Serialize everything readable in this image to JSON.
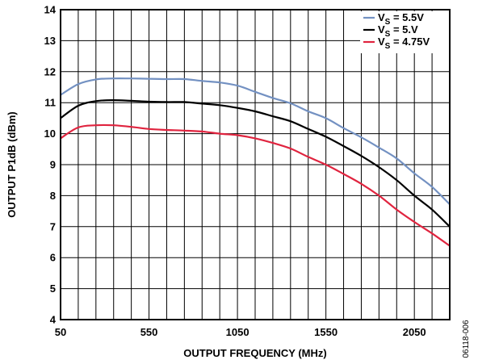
{
  "chart_data": {
    "type": "line",
    "title": "",
    "xlabel": "OUTPUT FREQUENCY (MHz)",
    "ylabel": "OUTPUT P1dB (dBm)",
    "xlim": [
      50,
      2250
    ],
    "ylim": [
      4,
      14
    ],
    "x_ticks": [
      50,
      550,
      1050,
      1550,
      2050
    ],
    "y_ticks": [
      4,
      5,
      6,
      7,
      8,
      9,
      10,
      11,
      12,
      13,
      14
    ],
    "x_grid_step": 100,
    "grid": true,
    "legend_position": "top-right",
    "figure_id": "06118-006",
    "series": [
      {
        "legend_main": "V",
        "legend_sub": "S",
        "legend_value": " = 5.5V",
        "color": "#7391c2",
        "x": [
          50,
          150,
          250,
          350,
          450,
          550,
          650,
          750,
          850,
          950,
          1050,
          1150,
          1250,
          1350,
          1450,
          1550,
          1650,
          1750,
          1850,
          1950,
          2050,
          2150,
          2250
        ],
        "y": [
          11.25,
          11.6,
          11.75,
          11.78,
          11.78,
          11.77,
          11.76,
          11.76,
          11.7,
          11.65,
          11.55,
          11.35,
          11.15,
          10.98,
          10.72,
          10.5,
          10.18,
          9.88,
          9.55,
          9.2,
          8.72,
          8.28,
          7.72
        ]
      },
      {
        "legend_main": "V",
        "legend_sub": "S",
        "legend_value": " = 5.V",
        "color": "#000000",
        "x": [
          50,
          150,
          250,
          350,
          450,
          550,
          650,
          750,
          850,
          950,
          1050,
          1150,
          1250,
          1350,
          1450,
          1550,
          1650,
          1750,
          1850,
          1950,
          2050,
          2150,
          2250
        ],
        "y": [
          10.5,
          10.9,
          11.05,
          11.08,
          11.06,
          11.03,
          11.02,
          11.02,
          10.97,
          10.92,
          10.83,
          10.72,
          10.56,
          10.4,
          10.15,
          9.9,
          9.6,
          9.28,
          8.92,
          8.5,
          8.0,
          7.55,
          7.0
        ]
      },
      {
        "legend_main": "V",
        "legend_sub": "S",
        "legend_value": " = 4.75V",
        "color": "#e0243f",
        "x": [
          50,
          150,
          250,
          350,
          450,
          550,
          650,
          750,
          850,
          950,
          1050,
          1150,
          1250,
          1350,
          1450,
          1550,
          1650,
          1750,
          1850,
          1950,
          2050,
          2150,
          2250
        ],
        "y": [
          9.85,
          10.2,
          10.27,
          10.27,
          10.22,
          10.15,
          10.12,
          10.1,
          10.07,
          10.0,
          9.95,
          9.85,
          9.7,
          9.52,
          9.25,
          9.0,
          8.7,
          8.38,
          8.0,
          7.55,
          7.15,
          6.78,
          6.38
        ]
      }
    ]
  }
}
